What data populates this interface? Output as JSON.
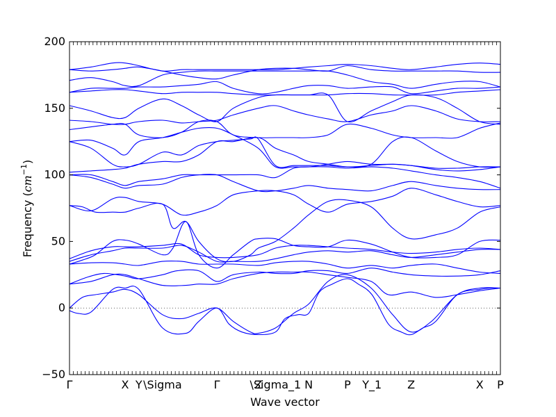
{
  "chart_data": {
    "type": "line",
    "title": "",
    "xlabel": "Wave vector",
    "ylabel": {
      "prefix": "Frequency (",
      "unit_base": "cm",
      "unit_exp": "−1",
      "suffix": ")"
    },
    "ylim": [
      -50,
      200
    ],
    "yticks": [
      "−50",
      "0",
      "50",
      "100",
      "150",
      "200"
    ],
    "ytick_values": [
      -50,
      0,
      50,
      100,
      150,
      200
    ],
    "xlim": [
      0,
      1
    ],
    "high_symmetry_points": [
      {
        "label": "Γ",
        "x": 0.0
      },
      {
        "label": "X",
        "x": 0.129
      },
      {
        "label": "Y",
        "x": 0.161
      },
      {
        "label": "\\Sigma",
        "x": 0.216
      },
      {
        "label": "Γ",
        "x": 0.342
      },
      {
        "label": "Z",
        "x": 0.438
      },
      {
        "label": "\\Sigma_1",
        "x": 0.478
      },
      {
        "label": "N",
        "x": 0.555
      },
      {
        "label": "P",
        "x": 0.645
      },
      {
        "label": "Y_1",
        "x": 0.702
      },
      {
        "label": "Z",
        "x": 0.793
      },
      {
        "label": "X",
        "x": 0.952
      },
      {
        "label": "P",
        "x": 1.0
      }
    ],
    "zero_line": true,
    "line_color": "#0000ff",
    "series": [
      {
        "x": [
          0,
          0.02,
          0.05,
          0.1,
          0.129,
          0.161,
          0.216,
          0.27,
          0.3,
          0.342,
          0.37,
          0.4,
          0.438,
          0.478,
          0.5,
          0.53,
          0.555,
          0.58,
          0.61,
          0.645,
          0.67,
          0.702,
          0.74,
          0.77,
          0.793,
          0.82,
          0.85,
          0.9,
          0.952,
          0.98,
          1.0
        ],
        "y": [
          -2,
          -4,
          -3,
          14,
          15,
          14,
          -15,
          -19,
          -10,
          0,
          -12,
          -18,
          -20,
          -18,
          -8,
          -5,
          -4,
          12,
          18,
          22,
          18,
          10,
          -12,
          -18,
          -20,
          -15,
          -10,
          10,
          14,
          15,
          15
        ]
      },
      {
        "x": [
          0,
          0.03,
          0.06,
          0.1,
          0.129,
          0.161,
          0.216,
          0.26,
          0.3,
          0.342,
          0.38,
          0.42,
          0.438,
          0.478,
          0.52,
          0.555,
          0.6,
          0.645,
          0.7,
          0.75,
          0.793,
          0.84,
          0.9,
          0.952,
          1.0
        ],
        "y": [
          0,
          8,
          10,
          12,
          14,
          10,
          -5,
          -8,
          -4,
          0,
          -10,
          -18,
          -19,
          -15,
          -4,
          3,
          20,
          25,
          15,
          -5,
          -18,
          -10,
          10,
          15,
          15
        ]
      },
      {
        "x": [
          0,
          0.05,
          0.1,
          0.129,
          0.161,
          0.216,
          0.27,
          0.3,
          0.342,
          0.38,
          0.438,
          0.478,
          0.52,
          0.555,
          0.6,
          0.645,
          0.7,
          0.74,
          0.793,
          0.85,
          0.9,
          0.952,
          1.0
        ],
        "y": [
          18,
          20,
          25,
          25,
          22,
          17,
          17,
          18,
          18,
          22,
          26,
          27,
          27,
          27,
          25,
          23,
          20,
          10,
          12,
          8,
          10,
          13,
          15
        ]
      },
      {
        "x": [
          0,
          0.04,
          0.08,
          0.129,
          0.161,
          0.216,
          0.25,
          0.3,
          0.342,
          0.38,
          0.438,
          0.478,
          0.52,
          0.555,
          0.6,
          0.645,
          0.7,
          0.75,
          0.793,
          0.85,
          0.9,
          0.952,
          1.0
        ],
        "y": [
          18,
          23,
          26,
          24,
          22,
          25,
          28,
          28,
          20,
          25,
          27,
          26,
          26,
          28,
          28,
          26,
          30,
          27,
          25,
          24,
          24,
          25,
          28
        ]
      },
      {
        "x": [
          0,
          0.05,
          0.1,
          0.129,
          0.161,
          0.216,
          0.26,
          0.3,
          0.342,
          0.38,
          0.438,
          0.478,
          0.52,
          0.555,
          0.6,
          0.645,
          0.7,
          0.75,
          0.793,
          0.85,
          0.9,
          0.952,
          1.0
        ],
        "y": [
          33,
          34,
          34,
          33,
          32,
          35,
          35,
          33,
          33,
          33,
          32,
          34,
          35,
          35,
          33,
          30,
          32,
          30,
          32,
          33,
          30,
          27,
          26
        ]
      },
      {
        "x": [
          0,
          0.05,
          0.1,
          0.129,
          0.161,
          0.216,
          0.26,
          0.3,
          0.342,
          0.38,
          0.438,
          0.478,
          0.52,
          0.555,
          0.6,
          0.645,
          0.7,
          0.75,
          0.793,
          0.85,
          0.9,
          0.952,
          1.0
        ],
        "y": [
          35,
          40,
          43,
          45,
          45,
          45,
          47,
          42,
          35,
          35,
          35,
          37,
          40,
          42,
          43,
          42,
          43,
          40,
          38,
          40,
          42,
          44,
          44
        ]
      },
      {
        "x": [
          0,
          0.05,
          0.1,
          0.129,
          0.161,
          0.216,
          0.26,
          0.3,
          0.342,
          0.38,
          0.438,
          0.478,
          0.52,
          0.555,
          0.6,
          0.645,
          0.7,
          0.75,
          0.793,
          0.85,
          0.9,
          0.952,
          1.0
        ],
        "y": [
          37,
          43,
          46,
          46,
          46,
          47,
          48,
          40,
          38,
          38,
          40,
          45,
          47,
          47,
          46,
          45,
          44,
          42,
          41,
          42,
          44,
          45,
          44
        ]
      },
      {
        "x": [
          0,
          0.03,
          0.06,
          0.1,
          0.129,
          0.161,
          0.216,
          0.24,
          0.27,
          0.3,
          0.342,
          0.38,
          0.42,
          0.438,
          0.478,
          0.52,
          0.555,
          0.6,
          0.645,
          0.7,
          0.75,
          0.793,
          0.85,
          0.9,
          0.952,
          1.0
        ],
        "y": [
          33,
          36,
          40,
          50,
          51,
          48,
          40,
          45,
          65,
          40,
          30,
          40,
          50,
          52,
          52,
          47,
          46,
          46,
          51,
          48,
          42,
          38,
          38,
          40,
          50,
          51
        ]
      },
      {
        "x": [
          0,
          0.03,
          0.06,
          0.1,
          0.129,
          0.161,
          0.216,
          0.24,
          0.27,
          0.3,
          0.342,
          0.38,
          0.42,
          0.438,
          0.478,
          0.52,
          0.555,
          0.6,
          0.645,
          0.7,
          0.75,
          0.793,
          0.85,
          0.9,
          0.952,
          1.0
        ],
        "y": [
          77,
          76,
          72,
          72,
          72,
          75,
          78,
          60,
          65,
          50,
          37,
          35,
          40,
          45,
          50,
          60,
          70,
          80,
          81,
          76,
          60,
          52,
          55,
          60,
          72,
          76
        ]
      },
      {
        "x": [
          0,
          0.05,
          0.1,
          0.129,
          0.161,
          0.216,
          0.26,
          0.3,
          0.342,
          0.38,
          0.438,
          0.478,
          0.52,
          0.555,
          0.6,
          0.645,
          0.7,
          0.75,
          0.793,
          0.85,
          0.9,
          0.952,
          1.0
        ],
        "y": [
          77,
          73,
          82,
          83,
          80,
          78,
          70,
          72,
          77,
          85,
          88,
          88,
          85,
          78,
          72,
          78,
          80,
          84,
          90,
          85,
          80,
          76,
          77
        ]
      },
      {
        "x": [
          0,
          0.05,
          0.1,
          0.129,
          0.161,
          0.216,
          0.26,
          0.3,
          0.342,
          0.38,
          0.438,
          0.478,
          0.52,
          0.555,
          0.6,
          0.645,
          0.7,
          0.75,
          0.793,
          0.85,
          0.9,
          0.952,
          1.0
        ],
        "y": [
          100,
          98,
          93,
          90,
          92,
          93,
          98,
          100,
          100,
          95,
          88,
          88,
          90,
          92,
          90,
          89,
          88,
          92,
          95,
          92,
          90,
          89,
          89
        ]
      },
      {
        "x": [
          0,
          0.05,
          0.1,
          0.129,
          0.161,
          0.216,
          0.26,
          0.3,
          0.342,
          0.38,
          0.438,
          0.478,
          0.52,
          0.555,
          0.6,
          0.645,
          0.7,
          0.75,
          0.793,
          0.85,
          0.9,
          0.952,
          1.0
        ],
        "y": [
          100,
          100,
          95,
          92,
          95,
          97,
          100,
          100,
          100,
          100,
          100,
          98,
          105,
          106,
          106,
          105,
          106,
          105,
          103,
          100,
          98,
          95,
          90
        ]
      },
      {
        "x": [
          0,
          0.05,
          0.1,
          0.129,
          0.161,
          0.216,
          0.26,
          0.3,
          0.342,
          0.38,
          0.438,
          0.478,
          0.52,
          0.555,
          0.6,
          0.645,
          0.7,
          0.75,
          0.793,
          0.85,
          0.9,
          0.952,
          1.0
        ],
        "y": [
          102,
          103,
          104,
          105,
          108,
          110,
          110,
          115,
          125,
          125,
          128,
          120,
          115,
          110,
          108,
          106,
          107,
          108,
          107,
          104,
          103,
          104,
          106
        ]
      },
      {
        "x": [
          0,
          0.05,
          0.1,
          0.129,
          0.161,
          0.216,
          0.26,
          0.3,
          0.342,
          0.38,
          0.42,
          0.438,
          0.478,
          0.52,
          0.555,
          0.6,
          0.645,
          0.7,
          0.75,
          0.793,
          0.85,
          0.9,
          0.952,
          1.0
        ],
        "y": [
          125,
          120,
          108,
          106,
          108,
          117,
          115,
          122,
          125,
          126,
          127,
          127,
          107,
          107,
          107,
          107,
          106,
          108,
          125,
          128,
          118,
          110,
          106,
          106
        ]
      },
      {
        "x": [
          0,
          0.05,
          0.1,
          0.129,
          0.161,
          0.216,
          0.26,
          0.3,
          0.342,
          0.38,
          0.438,
          0.478,
          0.52,
          0.555,
          0.6,
          0.645,
          0.7,
          0.75,
          0.793,
          0.85,
          0.9,
          0.952,
          1.0
        ],
        "y": [
          125,
          126,
          120,
          115,
          125,
          128,
          132,
          135,
          135,
          130,
          120,
          106,
          106,
          106,
          108,
          110,
          108,
          108,
          107,
          105,
          105,
          106,
          106
        ]
      },
      {
        "x": [
          0,
          0.05,
          0.1,
          0.129,
          0.161,
          0.216,
          0.26,
          0.3,
          0.342,
          0.38,
          0.438,
          0.478,
          0.52,
          0.555,
          0.6,
          0.645,
          0.7,
          0.75,
          0.793,
          0.85,
          0.9,
          0.952,
          1.0
        ],
        "y": [
          134,
          136,
          138,
          138,
          130,
          128,
          132,
          140,
          140,
          130,
          128,
          128,
          128,
          128,
          130,
          138,
          135,
          130,
          128,
          128,
          128,
          135,
          139
        ]
      },
      {
        "x": [
          0,
          0.05,
          0.1,
          0.129,
          0.161,
          0.216,
          0.26,
          0.3,
          0.342,
          0.38,
          0.438,
          0.478,
          0.52,
          0.555,
          0.6,
          0.645,
          0.7,
          0.75,
          0.793,
          0.85,
          0.9,
          0.952,
          1.0
        ],
        "y": [
          141,
          140,
          138,
          138,
          140,
          141,
          139,
          140,
          141,
          145,
          150,
          152,
          148,
          145,
          142,
          140,
          145,
          148,
          152,
          148,
          142,
          140,
          140
        ]
      },
      {
        "x": [
          0,
          0.05,
          0.1,
          0.129,
          0.161,
          0.216,
          0.26,
          0.3,
          0.342,
          0.38,
          0.438,
          0.478,
          0.52,
          0.555,
          0.6,
          0.645,
          0.7,
          0.75,
          0.793,
          0.85,
          0.9,
          0.952,
          1.0
        ],
        "y": [
          152,
          148,
          143,
          143,
          150,
          157,
          152,
          145,
          140,
          150,
          158,
          160,
          160,
          160,
          160,
          140,
          148,
          155,
          160,
          158,
          150,
          140,
          138
        ]
      },
      {
        "x": [
          0,
          0.05,
          0.1,
          0.129,
          0.161,
          0.216,
          0.26,
          0.3,
          0.342,
          0.38,
          0.438,
          0.478,
          0.52,
          0.555,
          0.6,
          0.645,
          0.7,
          0.75,
          0.793,
          0.85,
          0.9,
          0.952,
          1.0
        ],
        "y": [
          162,
          163,
          164,
          164,
          163,
          161,
          162,
          162,
          162,
          161,
          160,
          160,
          160,
          160,
          160,
          161,
          161,
          160,
          160,
          160,
          162,
          163,
          164
        ]
      },
      {
        "x": [
          0,
          0.05,
          0.1,
          0.129,
          0.161,
          0.216,
          0.26,
          0.3,
          0.342,
          0.38,
          0.438,
          0.478,
          0.52,
          0.555,
          0.6,
          0.645,
          0.7,
          0.75,
          0.793,
          0.85,
          0.9,
          0.952,
          1.0
        ],
        "y": [
          162,
          165,
          165,
          165,
          166,
          166,
          167,
          168,
          170,
          165,
          161,
          162,
          165,
          167,
          167,
          165,
          166,
          166,
          161,
          163,
          165,
          165,
          166
        ]
      },
      {
        "x": [
          0,
          0.05,
          0.1,
          0.129,
          0.161,
          0.216,
          0.26,
          0.3,
          0.342,
          0.38,
          0.438,
          0.478,
          0.52,
          0.555,
          0.6,
          0.645,
          0.7,
          0.75,
          0.793,
          0.85,
          0.9,
          0.952,
          1.0
        ],
        "y": [
          171,
          173,
          170,
          167,
          167,
          175,
          177,
          178,
          178,
          178,
          178,
          178,
          178,
          178,
          178,
          175,
          170,
          168,
          165,
          168,
          170,
          170,
          166
        ]
      },
      {
        "x": [
          0,
          0.05,
          0.1,
          0.129,
          0.161,
          0.216,
          0.26,
          0.3,
          0.342,
          0.38,
          0.438,
          0.478,
          0.52,
          0.555,
          0.6,
          0.645,
          0.7,
          0.75,
          0.793,
          0.85,
          0.9,
          0.952,
          1.0
        ],
        "y": [
          179,
          178,
          179,
          180,
          181,
          178,
          175,
          173,
          172,
          175,
          179,
          180,
          180,
          179,
          178,
          182,
          179,
          178,
          178,
          178,
          178,
          177,
          177
        ]
      },
      {
        "x": [
          0,
          0.05,
          0.1,
          0.129,
          0.161,
          0.216,
          0.26,
          0.3,
          0.342,
          0.38,
          0.438,
          0.478,
          0.52,
          0.555,
          0.6,
          0.645,
          0.7,
          0.75,
          0.793,
          0.85,
          0.9,
          0.952,
          1.0
        ],
        "y": [
          179,
          181,
          184,
          184,
          182,
          178,
          179,
          179,
          179,
          179,
          179,
          179,
          180,
          181,
          182,
          183,
          182,
          180,
          179,
          181,
          183,
          184,
          183
        ]
      }
    ]
  }
}
